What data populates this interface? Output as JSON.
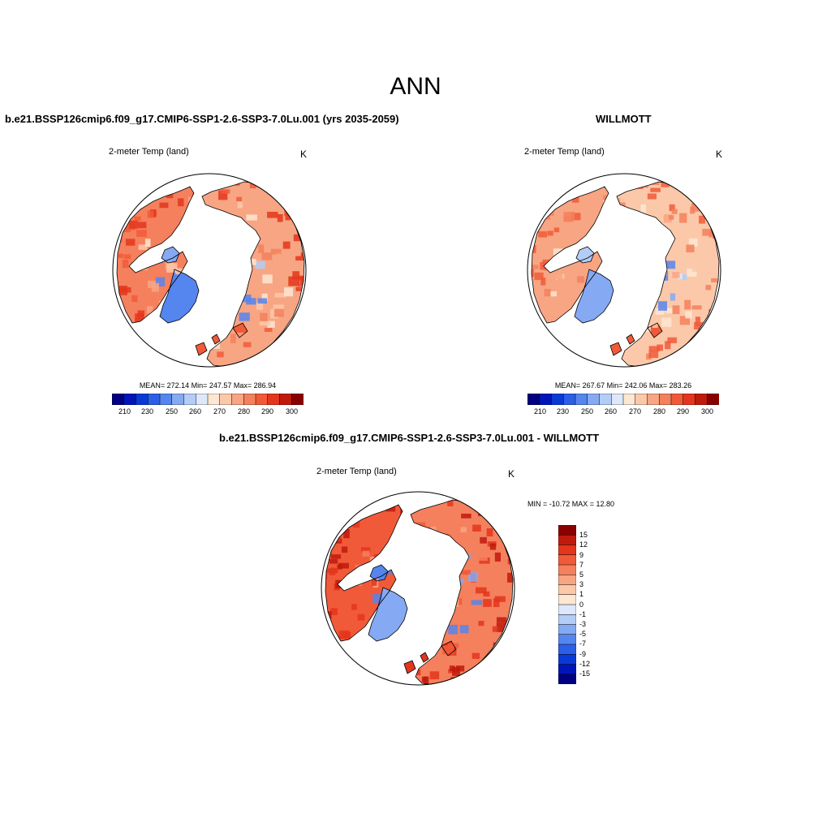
{
  "title": "ANN",
  "colors": {
    "abs_scale": [
      "#000080",
      "#0016b7",
      "#0a3ad6",
      "#2c5fe6",
      "#5585ee",
      "#85a9f3",
      "#b3cdf7",
      "#dde8fa",
      "#fde6d2",
      "#fbc8aa",
      "#f8a583",
      "#f5805d",
      "#f15a39",
      "#e3361d",
      "#c01a0d",
      "#8a0000"
    ],
    "diff_scale": [
      "#000080",
      "#0016b7",
      "#0a3ad6",
      "#2c5fe6",
      "#5585ee",
      "#85a9f3",
      "#b3cdf7",
      "#dde8fa",
      "#fde6d2",
      "#fbc8aa",
      "#f8a583",
      "#f5805d",
      "#f15a39",
      "#e3361d",
      "#c01a0d",
      "#8a0000"
    ]
  },
  "panels": {
    "model": {
      "title": "b.e21.BSSP126cmip6.f09_g17.CMIP6-SSP1-2.6-SSP3-7.0Lu.001 (yrs 2035-2059)",
      "var_label": "2-meter Temp (land)",
      "unit": "K",
      "stats": "MEAN= 272.14  Min= 247.57  Max= 286.94",
      "ticks": [
        "210",
        "230",
        "250",
        "260",
        "270",
        "280",
        "290",
        "300"
      ]
    },
    "obs": {
      "title": "WILLMOTT",
      "var_label": "2-meter Temp (land)",
      "unit": "K",
      "stats": "MEAN= 267.67  Min= 242.06  Max= 283.26",
      "ticks": [
        "210",
        "230",
        "250",
        "260",
        "270",
        "280",
        "290",
        "300"
      ]
    },
    "diff": {
      "title": "b.e21.BSSP126cmip6.f09_g17.CMIP6-SSP1-2.6-SSP3-7.0Lu.001 - WILLMOTT",
      "var_label": "2-meter Temp (land)",
      "unit": "K",
      "stats": "MIN = -10.72 MAX =  12.80",
      "ticks": [
        "15",
        "12",
        "9",
        "7",
        "5",
        "3",
        "1",
        "0",
        "-1",
        "-3",
        "-5",
        "-7",
        "-9",
        "-12",
        "-15"
      ]
    }
  }
}
